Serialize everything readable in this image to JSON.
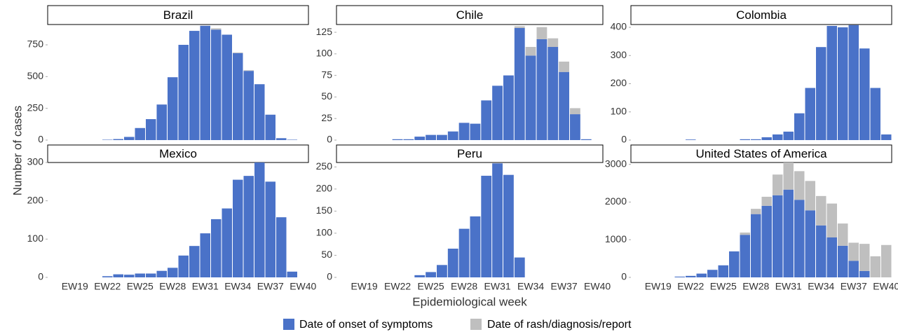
{
  "y_axis_label": "Number of cases",
  "x_axis_label": "Epidemiological week",
  "chart_data": [
    {
      "type": "bar",
      "stacked": true,
      "title": "Brazil",
      "categories": [
        null,
        null,
        "EW19",
        null,
        null,
        "EW22",
        null,
        null,
        "EW25",
        null,
        null,
        "EW28",
        null,
        null,
        "EW31",
        null,
        null,
        "EW34",
        null,
        null,
        "EW37",
        null,
        null,
        "EW40"
      ],
      "series": [
        {
          "name": "Date of onset of symptoms",
          "color": "#4a72c8",
          "values": [
            0,
            0,
            0,
            0,
            0,
            3,
            8,
            25,
            95,
            165,
            280,
            495,
            750,
            860,
            900,
            870,
            830,
            685,
            545,
            440,
            200,
            15,
            3,
            0
          ]
        },
        {
          "name": "Date of rash/diagnosis/report",
          "color": "#bfbfbf",
          "values": [
            0,
            0,
            0,
            0,
            0,
            0,
            0,
            0,
            0,
            0,
            0,
            0,
            0,
            0,
            0,
            10,
            0,
            5,
            5,
            0,
            0,
            0,
            0,
            0
          ]
        }
      ],
      "ylim": [
        0,
        910
      ],
      "yticks": [
        0,
        250,
        500,
        750
      ]
    },
    {
      "type": "bar",
      "stacked": true,
      "title": "Chile",
      "categories": [
        null,
        null,
        "EW19",
        null,
        null,
        "EW22",
        null,
        null,
        "EW25",
        null,
        null,
        "EW28",
        null,
        null,
        "EW31",
        null,
        null,
        "EW34",
        null,
        null,
        "EW37",
        null,
        null,
        "EW40"
      ],
      "series": [
        {
          "name": "Date of onset of symptoms",
          "color": "#4a72c8",
          "values": [
            0,
            0,
            0,
            0,
            0,
            1,
            1,
            4,
            6,
            6,
            10,
            20,
            19,
            46,
            63,
            75,
            130,
            98,
            117,
            108,
            79,
            30,
            1,
            0
          ]
        },
        {
          "name": "Date of rash/diagnosis/report",
          "color": "#bfbfbf",
          "values": [
            0,
            0,
            0,
            0,
            0,
            0,
            0,
            0,
            0,
            0,
            0,
            0,
            0,
            0,
            0,
            0,
            2,
            10,
            14,
            10,
            12,
            7,
            0,
            0
          ]
        }
      ],
      "ylim": [
        0,
        134
      ],
      "yticks": [
        0,
        25,
        50,
        75,
        100,
        125
      ]
    },
    {
      "type": "bar",
      "stacked": true,
      "title": "Colombia",
      "categories": [
        null,
        null,
        "EW19",
        null,
        null,
        "EW22",
        null,
        null,
        "EW25",
        null,
        null,
        "EW28",
        null,
        null,
        "EW31",
        null,
        null,
        "EW34",
        null,
        null,
        "EW37",
        null,
        null,
        "EW40"
      ],
      "series": [
        {
          "name": "Date of onset of symptoms",
          "color": "#4a72c8",
          "values": [
            0,
            0,
            0,
            0,
            0,
            2,
            0,
            0,
            0,
            0,
            3,
            3,
            10,
            20,
            30,
            95,
            185,
            330,
            405,
            400,
            408,
            325,
            185,
            20
          ]
        },
        {
          "name": "Date of rash/diagnosis/report",
          "color": "#bfbfbf",
          "values": [
            0,
            0,
            0,
            0,
            0,
            0,
            0,
            0,
            0,
            0,
            0,
            0,
            0,
            0,
            0,
            0,
            0,
            0,
            0,
            0,
            0,
            0,
            0,
            0
          ]
        }
      ],
      "ylim": [
        0,
        410
      ],
      "yticks": [
        0,
        100,
        200,
        300,
        400
      ]
    },
    {
      "type": "bar",
      "stacked": true,
      "title": "Mexico",
      "categories": [
        null,
        null,
        "EW19",
        null,
        null,
        "EW22",
        null,
        null,
        "EW25",
        null,
        null,
        "EW28",
        null,
        null,
        "EW31",
        null,
        null,
        "EW34",
        null,
        null,
        "EW37",
        null,
        null,
        "EW40"
      ],
      "series": [
        {
          "name": "Date of onset of symptoms",
          "color": "#4a72c8",
          "values": [
            0,
            0,
            0,
            0,
            0,
            3,
            8,
            7,
            10,
            10,
            17,
            25,
            57,
            82,
            115,
            152,
            180,
            255,
            265,
            300,
            250,
            157,
            15,
            0
          ]
        },
        {
          "name": "Date of rash/diagnosis/report",
          "color": "#bfbfbf",
          "values": [
            0,
            0,
            0,
            0,
            0,
            0,
            0,
            0,
            0,
            0,
            0,
            0,
            0,
            0,
            0,
            0,
            0,
            0,
            0,
            0,
            0,
            0,
            0,
            0
          ]
        }
      ],
      "ylim": [
        0,
        300
      ],
      "yticks": [
        0,
        100,
        200,
        300
      ]
    },
    {
      "type": "bar",
      "stacked": true,
      "title": "Peru",
      "categories": [
        null,
        null,
        "EW19",
        null,
        null,
        "EW22",
        null,
        null,
        "EW25",
        null,
        null,
        "EW28",
        null,
        null,
        "EW31",
        null,
        null,
        "EW34",
        null,
        null,
        "EW37",
        null,
        null,
        "EW40"
      ],
      "series": [
        {
          "name": "Date of onset of symptoms",
          "color": "#4a72c8",
          "values": [
            0,
            0,
            0,
            0,
            0,
            0,
            0,
            5,
            12,
            28,
            65,
            110,
            138,
            230,
            258,
            232,
            45,
            0,
            0,
            0,
            0,
            0,
            0,
            0
          ]
        },
        {
          "name": "Date of rash/diagnosis/report",
          "color": "#bfbfbf",
          "values": [
            0,
            0,
            0,
            0,
            0,
            0,
            0,
            0,
            0,
            0,
            0,
            0,
            0,
            0,
            0,
            0,
            0,
            0,
            0,
            0,
            0,
            0,
            0,
            0
          ]
        }
      ],
      "ylim": [
        0,
        260
      ],
      "yticks": [
        0,
        50,
        100,
        150,
        200,
        250
      ]
    },
    {
      "type": "bar",
      "stacked": true,
      "title": "United States of America",
      "categories": [
        null,
        null,
        "EW19",
        null,
        null,
        "EW22",
        null,
        null,
        "EW25",
        null,
        null,
        "EW28",
        null,
        null,
        "EW31",
        null,
        null,
        "EW34",
        null,
        null,
        "EW37",
        null,
        null,
        "EW40"
      ],
      "series": [
        {
          "name": "Date of onset of symptoms",
          "color": "#4a72c8",
          "values": [
            0,
            0,
            0,
            0,
            20,
            40,
            100,
            200,
            320,
            690,
            1130,
            1680,
            1900,
            2180,
            2330,
            2060,
            1780,
            1380,
            1060,
            840,
            440,
            170,
            0,
            0
          ]
        },
        {
          "name": "Date of rash/diagnosis/report",
          "color": "#bfbfbf",
          "values": [
            0,
            0,
            0,
            0,
            0,
            0,
            0,
            0,
            0,
            0,
            60,
            140,
            240,
            550,
            720,
            760,
            780,
            780,
            900,
            590,
            480,
            720,
            560,
            860
          ]
        }
      ],
      "ylim": [
        0,
        3050
      ],
      "yticks": [
        0,
        1000,
        2000,
        3000
      ]
    }
  ]
}
